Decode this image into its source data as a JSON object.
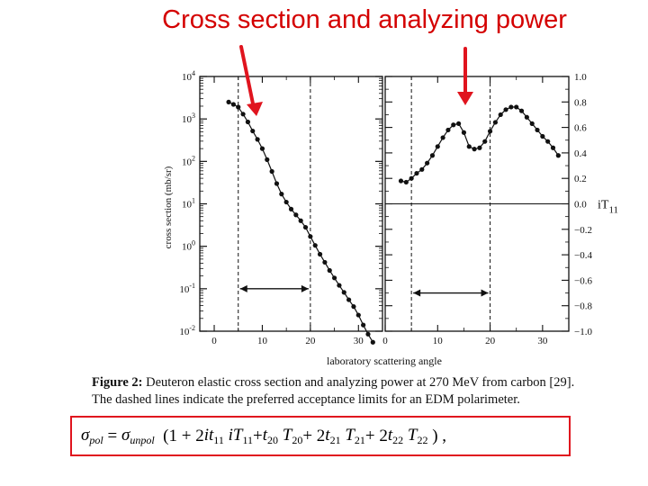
{
  "slide": {
    "title": "Cross section and analyzing power"
  },
  "caption": {
    "label": "Figure 2:",
    "line1": "Deuteron elastic cross section and analyzing power at 270 MeV from carbon [29].",
    "line2": "The dashed lines indicate the preferred acceptance limits for an EDM polarimeter."
  },
  "formula": {
    "sigma": "σ",
    "pol": "pol",
    "equals": "=",
    "unpol": "unpol",
    "body_a": "(1 + 2 ",
    "it11": "it",
    "sub11": "11",
    "iT": "iT",
    "plus_t20": " + ",
    "t": "t",
    "sub20": "20",
    "T": "T",
    "two": " + 2 ",
    "sub21": "21",
    "sub22": "22",
    "close": ") ,"
  },
  "colors": {
    "arrow_red": "#e0141e",
    "marker": "#111111"
  },
  "chart_data": [
    {
      "type": "scatter",
      "title": "",
      "xlabel": "laboratory scattering angle",
      "ylabel": "cross section  (mb/sr)",
      "y_scale": "log",
      "xlim": [
        -3,
        35
      ],
      "ylim": [
        0.01,
        10000
      ],
      "x_ticks": [
        "0",
        "10",
        "20",
        "30"
      ],
      "y_ticks": [
        "10^4",
        "10^3",
        "10^2",
        "10^1",
        "10^0",
        "10^-1",
        "10^-2"
      ],
      "acceptance_limits": [
        5,
        20
      ],
      "series": [
        {
          "x": [
            3,
            4,
            5,
            6,
            7,
            8,
            9,
            10,
            11,
            12,
            13,
            14,
            15,
            16,
            17,
            18,
            19,
            20,
            21,
            22,
            23,
            24,
            25,
            26,
            27,
            28,
            29,
            30,
            31,
            32,
            33
          ],
          "y": [
            2500,
            2200,
            1900,
            1300,
            850,
            520,
            330,
            200,
            110,
            58,
            30,
            17,
            11,
            7.5,
            5.5,
            4.0,
            2.8,
            1.7,
            1.05,
            0.65,
            0.42,
            0.27,
            0.18,
            0.12,
            0.082,
            0.055,
            0.038,
            0.024,
            0.014,
            0.0085,
            0.0055
          ]
        }
      ]
    },
    {
      "type": "scatter",
      "title": "",
      "xlabel": "laboratory scattering angle",
      "ylabel": "iT11",
      "ylabel_main": "iT",
      "ylabel_sub": "11",
      "xlim": [
        0,
        35
      ],
      "ylim": [
        -1.0,
        1.0
      ],
      "x_ticks": [
        "0",
        "10",
        "20",
        "30"
      ],
      "y_ticks": [
        "1.0",
        "0.8",
        "0.6",
        "0.4",
        "0.2",
        "0.0",
        "-0.2",
        "-0.4",
        "-0.6",
        "-0.8",
        "-1.0"
      ],
      "acceptance_limits": [
        5,
        20
      ],
      "series": [
        {
          "x": [
            3,
            4,
            5,
            6,
            7,
            8,
            9,
            10,
            11,
            12,
            13,
            14,
            15,
            16,
            17,
            18,
            19,
            20,
            21,
            22,
            23,
            24,
            25,
            26,
            27,
            28,
            29,
            30,
            31,
            32,
            33
          ],
          "y": [
            0.18,
            0.17,
            0.2,
            0.24,
            0.27,
            0.32,
            0.38,
            0.45,
            0.52,
            0.58,
            0.62,
            0.63,
            0.56,
            0.45,
            0.43,
            0.44,
            0.49,
            0.57,
            0.64,
            0.7,
            0.74,
            0.76,
            0.76,
            0.73,
            0.68,
            0.63,
            0.58,
            0.53,
            0.49,
            0.44,
            0.38
          ]
        }
      ]
    }
  ]
}
